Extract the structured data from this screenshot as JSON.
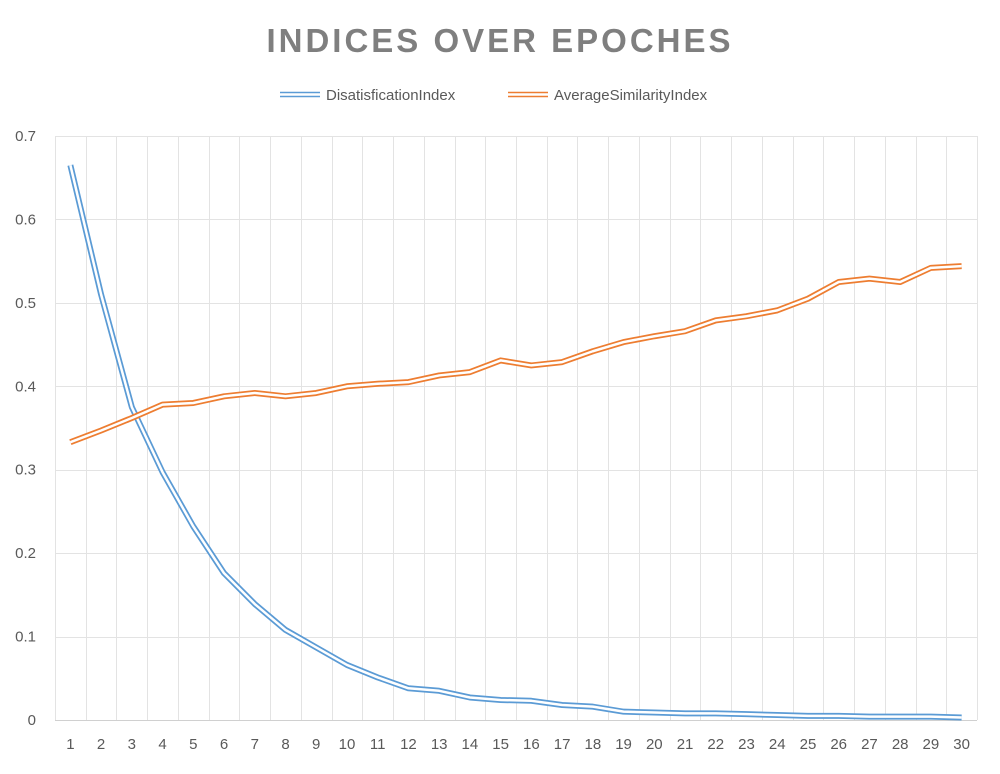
{
  "chart_data": {
    "type": "line",
    "title": "INDICES OVER EPOCHES",
    "legend_position": "top",
    "grid": true,
    "x": [
      1,
      2,
      3,
      4,
      5,
      6,
      7,
      8,
      9,
      10,
      11,
      12,
      13,
      14,
      15,
      16,
      17,
      18,
      19,
      20,
      21,
      22,
      23,
      24,
      25,
      26,
      27,
      28,
      29,
      30
    ],
    "ylim": [
      0,
      0.7
    ],
    "yticks": [
      "0",
      "0.1",
      "0.2",
      "0.3",
      "0.4",
      "0.5",
      "0.6",
      "0.7"
    ],
    "series": [
      {
        "name": "DisatisficationIndex",
        "color": "#5b9bd5",
        "values": [
          0.665,
          0.51,
          0.375,
          0.297,
          0.232,
          0.176,
          0.139,
          0.108,
          0.087,
          0.066,
          0.051,
          0.038,
          0.035,
          0.027,
          0.024,
          0.023,
          0.018,
          0.016,
          0.01,
          0.009,
          0.008,
          0.008,
          0.007,
          0.006,
          0.005,
          0.005,
          0.004,
          0.004,
          0.004,
          0.003
        ]
      },
      {
        "name": "AverageSimilarityIndex",
        "color": "#ed7d31",
        "values": [
          0.333,
          0.347,
          0.362,
          0.378,
          0.38,
          0.388,
          0.392,
          0.388,
          0.392,
          0.4,
          0.403,
          0.405,
          0.413,
          0.417,
          0.431,
          0.425,
          0.429,
          0.442,
          0.453,
          0.46,
          0.466,
          0.479,
          0.484,
          0.491,
          0.505,
          0.525,
          0.529,
          0.525,
          0.542,
          0.544
        ]
      }
    ]
  }
}
